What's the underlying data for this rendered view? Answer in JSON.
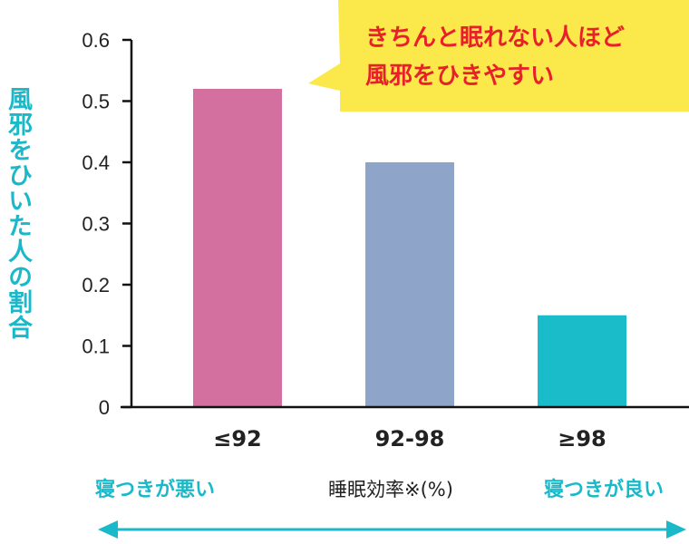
{
  "chart_data": {
    "type": "bar",
    "categories": [
      "≤92",
      "92-98",
      "≥98"
    ],
    "values": [
      0.52,
      0.4,
      0.15
    ],
    "ylabel": "風邪をひいた人の割合",
    "xlabel": "睡眠効率※(%)",
    "ylim": [
      0,
      0.6
    ],
    "yticks": [
      "0",
      "0.1",
      "0.2",
      "0.3",
      "0.4",
      "0.5",
      "0.6"
    ],
    "bar_colors": [
      "#d4709f",
      "#8ea4c8",
      "#19bcc8"
    ],
    "grid": false,
    "annotation": {
      "lines": [
        "きちんと眠れない人ほど",
        "風邪をひきやすい"
      ],
      "background": "#fbe94b",
      "text_color": "#e8202a"
    }
  },
  "bottom": {
    "left_label": "寝つきが悪い",
    "right_label": "寝つきが良い",
    "label_color": "#19b9c9",
    "arrow_color": "#19b9c9"
  }
}
